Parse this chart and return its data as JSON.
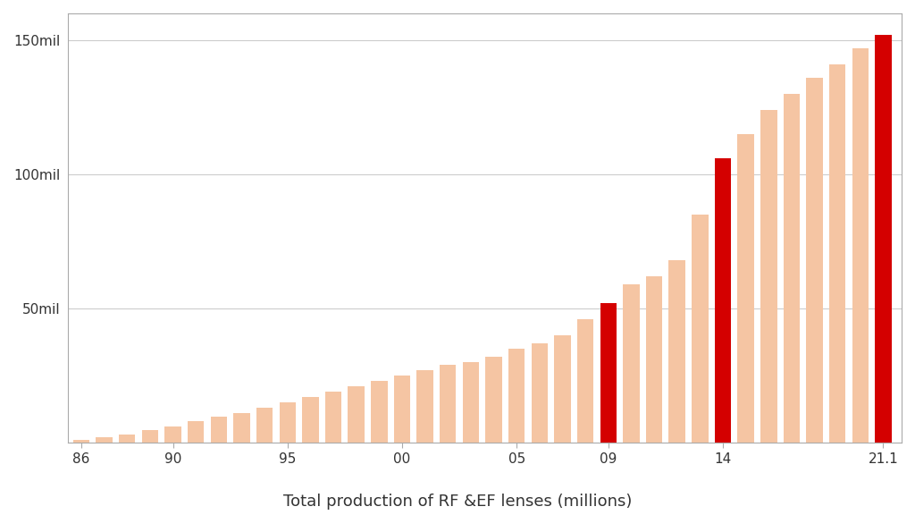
{
  "years": [
    1986,
    1987,
    1988,
    1989,
    1990,
    1991,
    1992,
    1993,
    1994,
    1995,
    1996,
    1997,
    1998,
    1999,
    2000,
    2001,
    2002,
    2003,
    2004,
    2005,
    2006,
    2007,
    2008,
    2009,
    2010,
    2011,
    2012,
    2013,
    2014,
    2015,
    2016,
    2017,
    2018,
    2019,
    2020,
    2021
  ],
  "values": [
    1,
    2,
    3,
    4.5,
    6,
    8,
    9.5,
    11,
    13,
    15,
    17,
    19,
    21,
    23,
    25,
    27,
    29,
    30,
    32,
    35,
    37,
    40,
    46,
    52,
    59,
    62,
    68,
    85,
    106,
    115,
    124,
    130,
    136,
    141,
    147,
    152
  ],
  "red_indices": [
    23,
    28,
    35
  ],
  "bar_color_normal": "#F5C5A3",
  "bar_color_red": "#D40000",
  "background_color": "#FFFFFF",
  "title": "Total production of RF &EF lenses (millions)",
  "ytick_labels": [
    "50mil",
    "100mil",
    "150mil"
  ],
  "ytick_values": [
    50,
    100,
    150
  ],
  "xtick_labels": [
    "86",
    "90",
    "95",
    "00",
    "05",
    "09",
    "14",
    "21.1"
  ],
  "xtick_positions": [
    1986,
    1990,
    1995,
    2000,
    2005,
    2009,
    2014,
    2021
  ],
  "ylim": [
    0,
    160
  ],
  "xlim_left": 1985.4,
  "xlim_right": 2021.8,
  "bar_width": 0.72,
  "figsize": [
    10.24,
    5.76
  ],
  "dpi": 100,
  "frame_color": "#AAAAAA",
  "grid_color": "#CCCCCC",
  "tick_label_color": "#333333",
  "tick_fontsize": 11,
  "title_fontsize": 13
}
